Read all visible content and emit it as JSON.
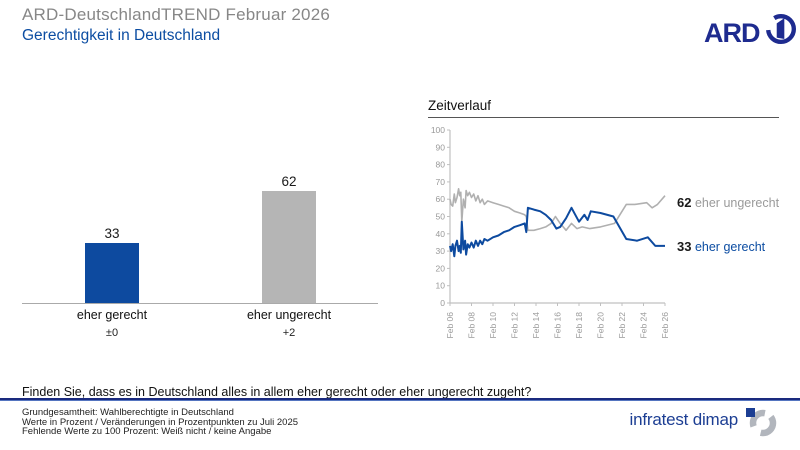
{
  "header": {
    "title": "ARD-DeutschlandTREND Februar 2026",
    "subtitle": "Gerechtigkeit in Deutschland",
    "ard_logo_text": "ARD",
    "ard_blue": "#1e2b8f"
  },
  "chart_data": [
    {
      "type": "bar",
      "categories": [
        "eher gerecht",
        "eher ungerecht"
      ],
      "values": [
        33,
        62
      ],
      "changes": [
        "±0",
        "+2"
      ],
      "colors": [
        "#0d4a9f",
        "#b5b5b5"
      ],
      "ylim": [
        0,
        100
      ]
    },
    {
      "type": "line",
      "title": "Zeitverlauf",
      "x_start": 2006.1,
      "x_end": 2026.1,
      "x_tick_labels": [
        "Feb 06",
        "Feb 08",
        "Feb 10",
        "Feb 12",
        "Feb 14",
        "Feb 16",
        "Feb 18",
        "Feb 20",
        "Feb 22",
        "Feb 24",
        "Feb 26"
      ],
      "y_ticks": [
        0,
        10,
        20,
        30,
        40,
        50,
        60,
        70,
        80,
        90,
        100
      ],
      "ylim": [
        0,
        100
      ],
      "axis_color": "#c0c0c0",
      "series": [
        {
          "name": "eher ungerecht",
          "color": "#b0b0b0",
          "width": 1.6,
          "points": [
            [
              2006.1,
              60
            ],
            [
              2006.2,
              57
            ],
            [
              2006.35,
              56
            ],
            [
              2006.5,
              63
            ],
            [
              2006.6,
              58
            ],
            [
              2006.75,
              61
            ],
            [
              2006.9,
              66
            ],
            [
              2007.0,
              62
            ],
            [
              2007.1,
              64
            ],
            [
              2007.2,
              47
            ],
            [
              2007.35,
              60
            ],
            [
              2007.5,
              55
            ],
            [
              2007.6,
              65
            ],
            [
              2007.75,
              62
            ],
            [
              2007.9,
              64
            ],
            [
              2008.1,
              61
            ],
            [
              2008.3,
              63
            ],
            [
              2008.5,
              59
            ],
            [
              2008.7,
              62
            ],
            [
              2008.9,
              58
            ],
            [
              2009.1,
              60
            ],
            [
              2009.3,
              57
            ],
            [
              2009.6,
              59
            ],
            [
              2010.1,
              58
            ],
            [
              2010.6,
              57
            ],
            [
              2011.1,
              56
            ],
            [
              2011.6,
              55
            ],
            [
              2012.1,
              53
            ],
            [
              2012.6,
              52
            ],
            [
              2013.05,
              51
            ],
            [
              2013.2,
              50
            ],
            [
              2013.35,
              42
            ],
            [
              2013.9,
              42
            ],
            [
              2014.5,
              43
            ],
            [
              2015.0,
              44
            ],
            [
              2015.5,
              46
            ],
            [
              2015.9,
              50
            ],
            [
              2016.35,
              46
            ],
            [
              2016.9,
              42
            ],
            [
              2017.4,
              46
            ],
            [
              2017.9,
              43
            ],
            [
              2018.4,
              44
            ],
            [
              2019.1,
              43
            ],
            [
              2020.1,
              44
            ],
            [
              2021.4,
              46
            ],
            [
              2022.5,
              57
            ],
            [
              2023.3,
              57
            ],
            [
              2024.4,
              58
            ],
            [
              2024.9,
              55
            ],
            [
              2025.4,
              57
            ],
            [
              2026.1,
              62
            ]
          ]
        },
        {
          "name": "eher gerecht",
          "color": "#0d4a9f",
          "width": 2,
          "points": [
            [
              2006.1,
              33
            ],
            [
              2006.2,
              30
            ],
            [
              2006.35,
              34
            ],
            [
              2006.5,
              27
            ],
            [
              2006.6,
              33
            ],
            [
              2006.75,
              36
            ],
            [
              2006.9,
              30
            ],
            [
              2007.0,
              33
            ],
            [
              2007.1,
              29
            ],
            [
              2007.2,
              47
            ],
            [
              2007.35,
              31
            ],
            [
              2007.5,
              36
            ],
            [
              2007.6,
              28
            ],
            [
              2007.75,
              34
            ],
            [
              2007.9,
              32
            ],
            [
              2008.1,
              35
            ],
            [
              2008.3,
              32
            ],
            [
              2008.5,
              36
            ],
            [
              2008.7,
              33
            ],
            [
              2008.9,
              36
            ],
            [
              2009.1,
              34
            ],
            [
              2009.3,
              37
            ],
            [
              2009.6,
              36
            ],
            [
              2010.1,
              38
            ],
            [
              2010.6,
              39
            ],
            [
              2011.1,
              41
            ],
            [
              2011.6,
              42
            ],
            [
              2012.1,
              44
            ],
            [
              2012.6,
              45
            ],
            [
              2013.05,
              46
            ],
            [
              2013.2,
              41
            ],
            [
              2013.35,
              55
            ],
            [
              2013.9,
              54
            ],
            [
              2014.5,
              53
            ],
            [
              2015.0,
              51
            ],
            [
              2015.5,
              48
            ],
            [
              2016.0,
              43
            ],
            [
              2016.35,
              44
            ],
            [
              2016.9,
              49
            ],
            [
              2017.4,
              55
            ],
            [
              2018.1,
              47
            ],
            [
              2018.6,
              51
            ],
            [
              2018.9,
              48
            ],
            [
              2019.2,
              53
            ],
            [
              2020.1,
              52
            ],
            [
              2021.3,
              50
            ],
            [
              2022.5,
              37
            ],
            [
              2023.5,
              36
            ],
            [
              2024.5,
              38
            ],
            [
              2025.2,
              33
            ],
            [
              2026.1,
              33
            ]
          ]
        }
      ],
      "end_labels": [
        {
          "value": "62",
          "label": "eher ungerecht"
        },
        {
          "value": "33",
          "label": "eher gerecht"
        }
      ]
    }
  ],
  "question": "Finden Sie, dass es in Deutschland alles in allem eher gerecht oder eher ungerecht zugeht?",
  "footer": {
    "lines": [
      "Grundgesamtheit: Wahlberechtigte in Deutschland",
      "Werte in Prozent / Veränderungen in Prozentpunkten zu Juli 2025",
      "Fehlende Werte zu 100 Prozent: Weiß nicht / keine Angabe"
    ],
    "brand": "infratest dimap",
    "brand_blue": "#1c3e93",
    "brand_gray": "#b2b6bd"
  }
}
